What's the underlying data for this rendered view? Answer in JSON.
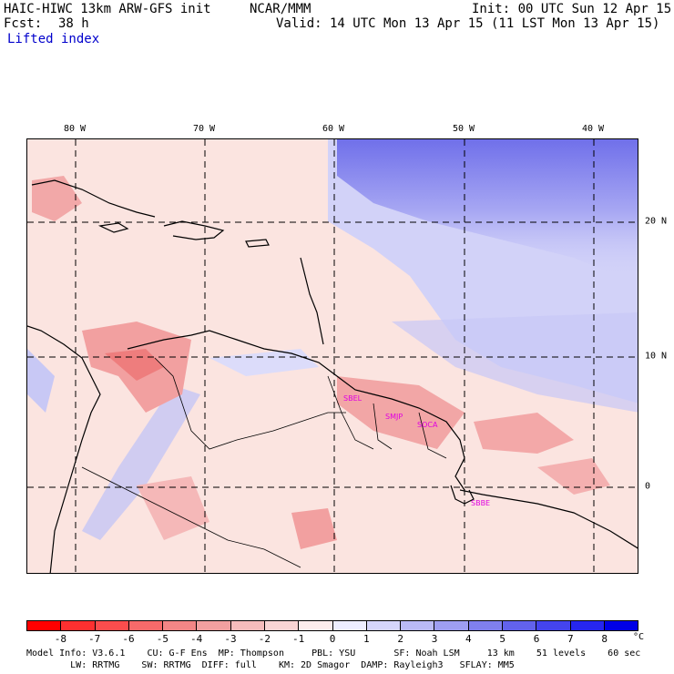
{
  "header": {
    "title": "HAIC-HIWC 13km ARW-GFS init",
    "org": "NCAR/MMM",
    "init": "Init: 00 UTC Sun 12 Apr 15",
    "fcst_label": "Fcst:",
    "fcst_value": "38 h",
    "valid": "Valid: 14 UTC Mon 13 Apr 15 (11 LST Mon 13 Apr 15)",
    "field": "Lifted index"
  },
  "map": {
    "lon_labels": [
      "80 W",
      "70 W",
      "60 W",
      "50 W",
      "40 W"
    ],
    "lat_labels": [
      "20 N",
      "10 N",
      "0"
    ],
    "stations": [
      "SBEL",
      "SMJP",
      "SOCA",
      "SBBE"
    ]
  },
  "colorbar": {
    "ticks": [
      "-8",
      "-7",
      "-6",
      "-5",
      "-4",
      "-3",
      "-2",
      "-1",
      "0",
      "1",
      "2",
      "3",
      "4",
      "5",
      "6",
      "7",
      "8"
    ],
    "unit": "°C",
    "colors": [
      "#ff0000",
      "#fe3030",
      "#fb4d4d",
      "#f76a6a",
      "#f38686",
      "#f2a0a0",
      "#f5bcbc",
      "#f8d4d4",
      "#fcecec",
      "#eeeeff",
      "#d6d6fb",
      "#babaf6",
      "#9e9ef1",
      "#8080ee",
      "#6262ec",
      "#4444ee",
      "#2626f0",
      "#0000e6"
    ]
  },
  "footer": {
    "line1": "Model Info: V3.6.1    CU: G-F Ens  MP: Thompson     PBL: YSU       SF: Noah LSM     13 km    51 levels    60 sec",
    "line2": "        LW: RRTMG    SW: RRTMG  DIFF: full    KM: 2D Smagor  DAMP: Rayleigh3   SFLAY: MM5"
  }
}
